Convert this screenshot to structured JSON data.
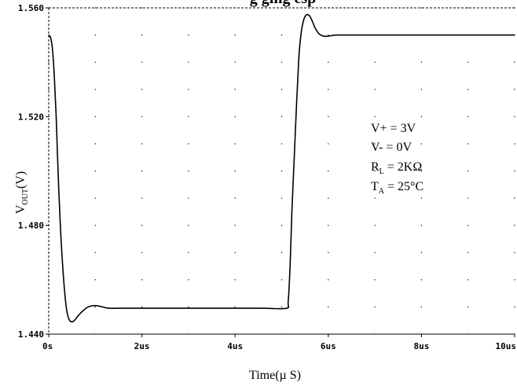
{
  "chart_data": {
    "type": "line",
    "title": "",
    "title_partial_visible": "g  ging  esp",
    "xlabel": "Time(µ S)",
    "ylabel_main": "V",
    "ylabel_sub": "OUT",
    "ylabel_unit": "(V)",
    "xlim": [
      0,
      10
    ],
    "ylim": [
      1.44,
      1.56
    ],
    "x_ticks": [
      {
        "value": 0,
        "label": "0s"
      },
      {
        "value": 2,
        "label": "2us"
      },
      {
        "value": 4,
        "label": "4us"
      },
      {
        "value": 6,
        "label": "6us"
      },
      {
        "value": 8,
        "label": "8us"
      },
      {
        "value": 10,
        "label": "10us"
      }
    ],
    "y_ticks": [
      {
        "value": 1.44,
        "label": "1.440"
      },
      {
        "value": 1.48,
        "label": "1.480"
      },
      {
        "value": 1.52,
        "label": "1.520"
      },
      {
        "value": 1.56,
        "label": "1.560"
      }
    ],
    "grid": "dotted",
    "series": [
      {
        "color": "#000000",
        "points": [
          [
            0.0,
            1.55
          ],
          [
            0.04,
            1.549
          ],
          [
            0.08,
            1.545
          ],
          [
            0.12,
            1.535
          ],
          [
            0.16,
            1.52
          ],
          [
            0.2,
            1.5
          ],
          [
            0.25,
            1.48
          ],
          [
            0.3,
            1.465
          ],
          [
            0.35,
            1.454
          ],
          [
            0.4,
            1.4475
          ],
          [
            0.45,
            1.445
          ],
          [
            0.5,
            1.4445
          ],
          [
            0.55,
            1.445
          ],
          [
            0.62,
            1.4465
          ],
          [
            0.7,
            1.448
          ],
          [
            0.8,
            1.4495
          ],
          [
            0.9,
            1.4503
          ],
          [
            1.0,
            1.4505
          ],
          [
            1.1,
            1.4502
          ],
          [
            1.2,
            1.4498
          ],
          [
            1.3,
            1.4495
          ],
          [
            1.5,
            1.4495
          ],
          [
            2.0,
            1.4495
          ],
          [
            3.0,
            1.4495
          ],
          [
            4.0,
            1.4495
          ],
          [
            4.6,
            1.4495
          ],
          [
            5.1,
            1.4495
          ],
          [
            5.14,
            1.452
          ],
          [
            5.18,
            1.465
          ],
          [
            5.22,
            1.485
          ],
          [
            5.27,
            1.505
          ],
          [
            5.32,
            1.525
          ],
          [
            5.37,
            1.542
          ],
          [
            5.42,
            1.551
          ],
          [
            5.48,
            1.556
          ],
          [
            5.54,
            1.5575
          ],
          [
            5.6,
            1.557
          ],
          [
            5.66,
            1.555
          ],
          [
            5.72,
            1.5525
          ],
          [
            5.8,
            1.5505
          ],
          [
            5.88,
            1.5497
          ],
          [
            5.95,
            1.5495
          ],
          [
            6.05,
            1.5497
          ],
          [
            6.2,
            1.55
          ],
          [
            7.0,
            1.55
          ],
          [
            8.0,
            1.55
          ],
          [
            9.0,
            1.55
          ],
          [
            10.0,
            1.55
          ]
        ]
      }
    ]
  },
  "annotation": {
    "vplus": "V+ = 3V",
    "vminus": "V- = 0V",
    "rl_main": "R",
    "rl_sub": "L",
    "rl_rest": " = 2KΩ",
    "ta_main": "T",
    "ta_sub": "A",
    "ta_rest": " = 25°C"
  }
}
